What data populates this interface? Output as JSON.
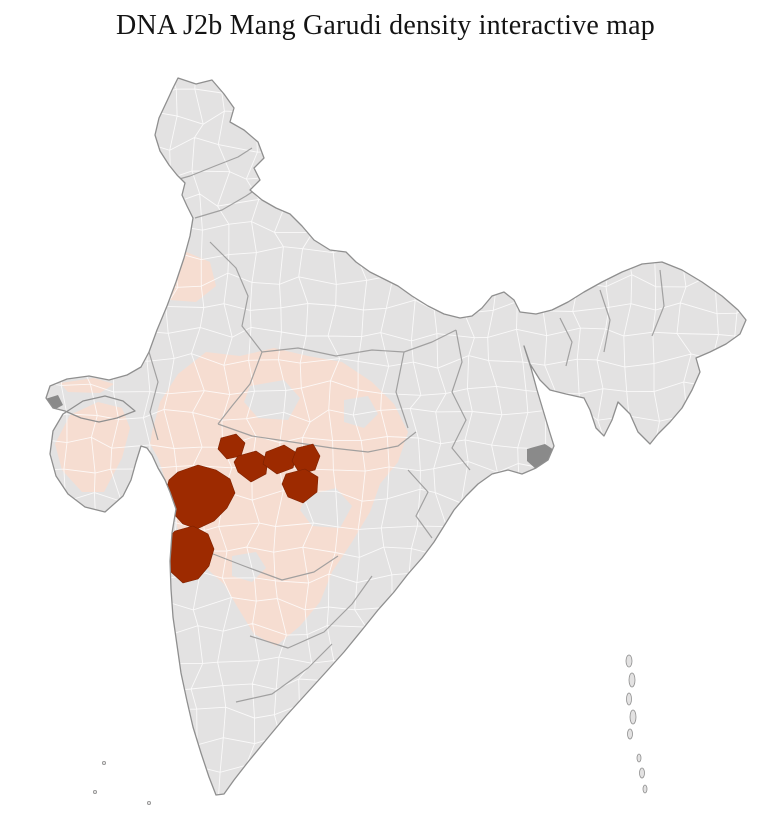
{
  "page": {
    "title": "DNA J2b Mang Garudi density interactive map",
    "background_color": "#ffffff"
  },
  "map": {
    "region": "India",
    "kind": "district choropleth",
    "colors": {
      "district_default_fill": "#e3e2e2",
      "district_low_density_fill": "#f6ddd1",
      "district_high_density_fill": "#9d2a00",
      "district_high_density_border": "#7c2100",
      "district_border": "#ffffff",
      "state_border": "#9a9a9a",
      "coast_outline": "#8f8f8f",
      "dense_urban_patch": "#8a8a8a"
    }
  }
}
